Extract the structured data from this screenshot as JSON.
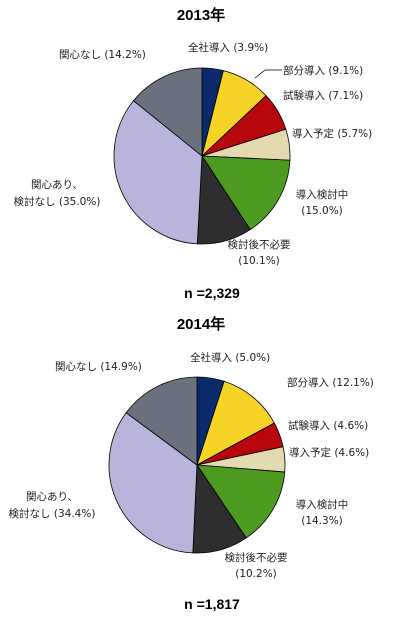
{
  "chart_data": [
    {
      "type": "pie",
      "title": "2013年",
      "n_label": "n =2,329",
      "slices": [
        {
          "label": "全社導入",
          "value": 3.9,
          "value_label": "(3.9%)",
          "color": "#0b2a6b"
        },
        {
          "label": "部分導入",
          "value": 9.1,
          "value_label": "(9.1%)",
          "color": "#f5d327"
        },
        {
          "label": "試験導入",
          "value": 7.1,
          "value_label": "(7.1%)",
          "color": "#b8070c"
        },
        {
          "label": "導入予定",
          "value": 5.7,
          "value_label": "(5.7%)",
          "color": "#e3dab0"
        },
        {
          "label": "導入検討中",
          "value": 15.0,
          "value_label": "(15.0%)",
          "color": "#4c9a1f"
        },
        {
          "label": "検討後不必要",
          "value": 10.1,
          "value_label": "(10.1%)",
          "color": "#2e2e30"
        },
        {
          "label": "関心あり、検討なし",
          "value": 35.0,
          "value_label": "(35.0%)",
          "color": "#b9b4dc"
        },
        {
          "label": "関心なし",
          "value": 14.2,
          "value_label": "(14.2%)",
          "color": "#6b717e"
        }
      ]
    },
    {
      "type": "pie",
      "title": "2014年",
      "n_label": "n =1,817",
      "slices": [
        {
          "label": "全社導入",
          "value": 5.0,
          "value_label": "(5.0%)",
          "color": "#0b2a6b"
        },
        {
          "label": "部分導入",
          "value": 12.1,
          "value_label": "(12.1%)",
          "color": "#f5d327"
        },
        {
          "label": "試験導入",
          "value": 4.6,
          "value_label": "(4.6%)",
          "color": "#b8070c"
        },
        {
          "label": "導入予定",
          "value": 4.6,
          "value_label": "(4.6%)",
          "color": "#e3dab0"
        },
        {
          "label": "導入検討中",
          "value": 14.3,
          "value_label": "(14.3%)",
          "color": "#4c9a1f"
        },
        {
          "label": "検討後不必要",
          "value": 10.2,
          "value_label": "(10.2%)",
          "color": "#2e2e30"
        },
        {
          "label": "関心あり、検討なし",
          "value": 34.4,
          "value_label": "(34.4%)",
          "color": "#b9b4dc"
        },
        {
          "label": "関心なし",
          "value": 14.9,
          "value_label": "(14.9%)",
          "color": "#6b717e"
        }
      ]
    }
  ]
}
